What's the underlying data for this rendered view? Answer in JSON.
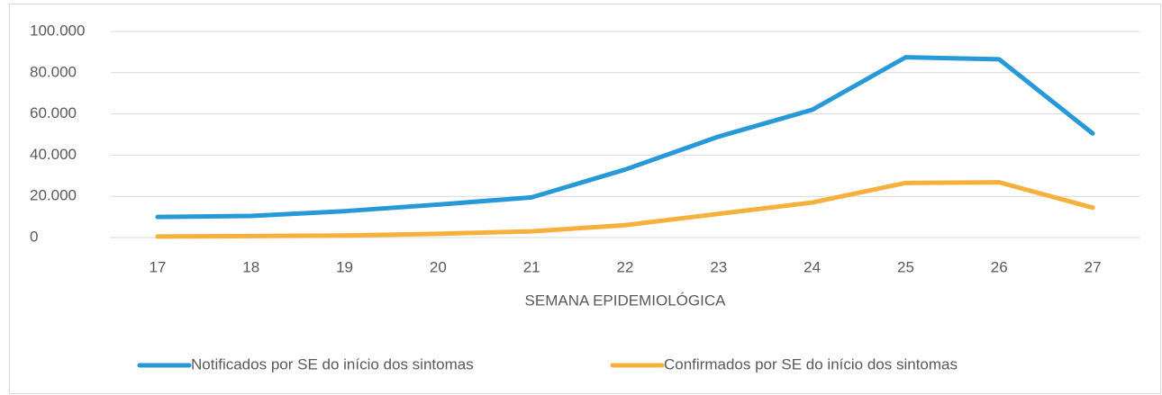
{
  "chart_data": {
    "type": "line",
    "x_label": "SEMANA EPIDEMIOLÓGICA",
    "categories": [
      "17",
      "18",
      "19",
      "20",
      "21",
      "22",
      "23",
      "24",
      "25",
      "26",
      "27"
    ],
    "series": [
      {
        "name": "Notificados por SE do início dos sintomas",
        "color": "#2899d8",
        "values": [
          10000,
          10500,
          12800,
          16000,
          19500,
          33000,
          49000,
          62000,
          87500,
          86500,
          50500
        ]
      },
      {
        "name": "Confirmados por SE do início dos sintomas",
        "color": "#f6b13c",
        "values": [
          500,
          700,
          1000,
          1800,
          3000,
          6000,
          11500,
          17000,
          26500,
          26800,
          14500
        ]
      }
    ],
    "ylim": [
      0,
      100000
    ],
    "yticks": [
      0,
      {
        "value": 20000,
        "label": "20.000"
      },
      {
        "value": 40000,
        "label": "40.000"
      },
      {
        "value": 60000,
        "label": "60.000"
      },
      {
        "value": 80000,
        "label": "80.000"
      },
      {
        "value": 100000,
        "label": "100.000"
      }
    ],
    "grid": true,
    "legend": "bottom"
  }
}
